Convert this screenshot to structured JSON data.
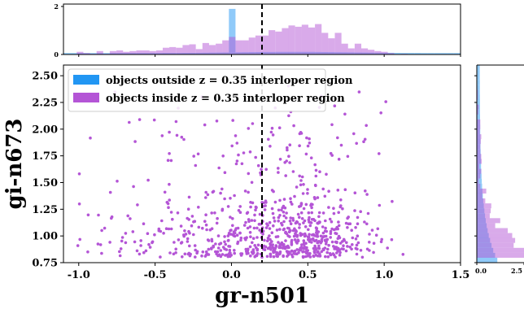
{
  "chart_data": {
    "type": "scatter",
    "xlabel": "gr-n501",
    "ylabel": "gi-n673",
    "xlim": [
      -1.1,
      1.5
    ],
    "ylim": [
      0.75,
      2.6
    ],
    "xticks": [
      "-1.0",
      "-0.5",
      "0.0",
      "0.5",
      "1.0",
      "1.5"
    ],
    "yticks": [
      "0.75",
      "1.00",
      "1.25",
      "1.50",
      "1.75",
      "2.00",
      "2.25",
      "2.50"
    ],
    "cut_line_x": 0.2,
    "legend": {
      "placement": "upper-left",
      "entries": [
        {
          "label": "objects outside z = 0.35 interloper region",
          "color": "#2196f3"
        },
        {
          "label": "objects inside z = 0.35 interloper region",
          "color": "#b455d6"
        }
      ]
    },
    "top_histogram": {
      "yticks": [
        "0",
        "2"
      ],
      "ylim": [
        0,
        2.1
      ],
      "outside_color": "#2196f3",
      "inside_color": "#b455d6",
      "outside_spike_x": 0.02,
      "outside_spike_height": 1.9
    },
    "right_histogram": {
      "xticks": [
        "0.0",
        "2.5"
      ],
      "xlim": [
        0,
        2.8
      ]
    },
    "series": [
      {
        "name": "objects inside z = 0.35 interloper region",
        "color": "#b455d6"
      }
    ]
  }
}
